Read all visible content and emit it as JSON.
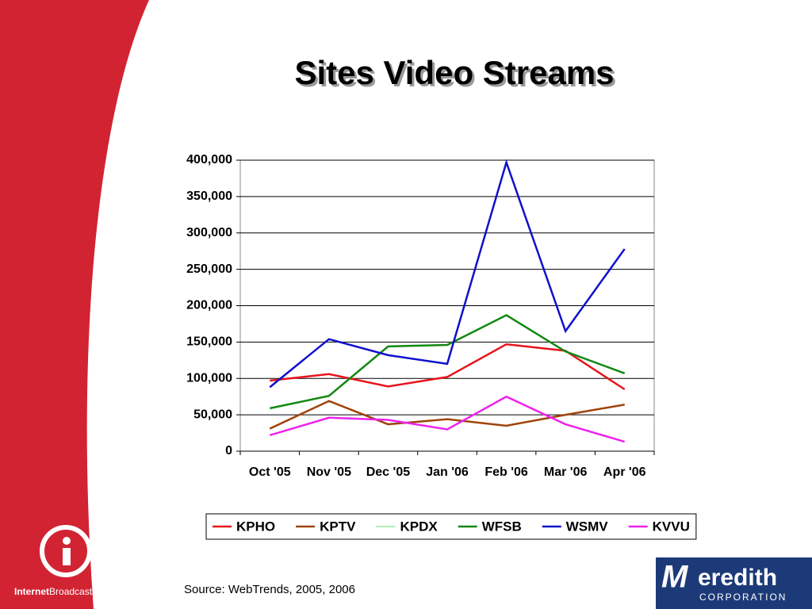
{
  "chart_data": {
    "type": "line",
    "title": "Sites Video Streams",
    "categories": [
      "Oct '05",
      "Nov '05",
      "Dec '05",
      "Jan '06",
      "Feb '06",
      "Mar '06",
      "Apr '06"
    ],
    "series": [
      {
        "name": "KPHO",
        "color": "#e8141c",
        "values": [
          97000,
          106000,
          89000,
          102000,
          147000,
          138000,
          85000
        ]
      },
      {
        "name": "KPTV",
        "color": "#a0430a",
        "values": [
          31000,
          69000,
          37000,
          44000,
          35000,
          50000,
          64000
        ]
      },
      {
        "name": "KPDX",
        "color": "#66dd66",
        "values": [
          null,
          null,
          null,
          null,
          null,
          null,
          null
        ]
      },
      {
        "name": "WFSB",
        "color": "#118811",
        "values": [
          59000,
          76000,
          144000,
          146000,
          187000,
          137000,
          107000
        ]
      },
      {
        "name": "WSMV",
        "color": "#1010cc",
        "values": [
          88000,
          154000,
          132000,
          120000,
          397000,
          165000,
          278000
        ]
      },
      {
        "name": "KVVU",
        "color": "#ee22ee",
        "values": [
          22000,
          46000,
          43000,
          30000,
          75000,
          37000,
          13000
        ]
      }
    ],
    "ylim": [
      0,
      400000
    ],
    "yticks": [
      0,
      {
        "value": 50000,
        "label": "50,000"
      },
      {
        "value": 100000,
        "label": "100,000"
      },
      {
        "value": 150000,
        "label": "150,000"
      },
      {
        "value": 200000,
        "label": "200,000"
      },
      {
        "value": 250000,
        "label": "250,000"
      },
      {
        "value": 300000,
        "label": "300,000"
      },
      {
        "value": 350000,
        "label": "350,000"
      },
      {
        "value": 400000,
        "label": "400,000"
      }
    ],
    "grid": true,
    "legend": "bottom",
    "source": "Source: WebTrends, 2005, 2006"
  },
  "logos": {
    "left_bold": "Internet",
    "left_rest": "Broadcasting",
    "right_initial": "M",
    "right_name": "eredith",
    "right_sub": "CORPORATION"
  }
}
